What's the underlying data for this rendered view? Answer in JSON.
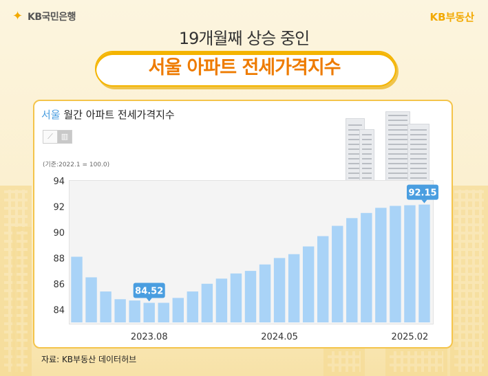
{
  "brand": {
    "bank": "KB국민은행",
    "realestate": "KB부동산"
  },
  "headline": {
    "line1": "19개월째 상승 중인",
    "line2": "서울 아파트 전세가격지수"
  },
  "card": {
    "city": "서울",
    "title_rest": " 월간 아파트 전세가격지수",
    "basis": "(기준:2022.1 = 100.0)"
  },
  "source": "자료: KB부동산 데이터허브",
  "colors": {
    "bar": "#a9d3f7",
    "label_bg": "#4a9ee0",
    "accent": "#f4b400",
    "title_orange": "#ee7b00"
  },
  "icons": {
    "line_toggle": "line-chart-icon",
    "bar_toggle": "bar-chart-icon"
  },
  "chart_data": {
    "type": "bar",
    "title": "",
    "ylim": [
      83,
      94
    ],
    "yticks": [
      84,
      86,
      88,
      90,
      92,
      94
    ],
    "x_tick_labels": [
      "2023.08",
      "2024.05",
      "2025.02"
    ],
    "x_tick_index": [
      5,
      14,
      23
    ],
    "values": [
      88.1,
      86.5,
      85.4,
      84.8,
      84.7,
      84.52,
      84.52,
      84.9,
      85.4,
      86.0,
      86.4,
      86.8,
      87.0,
      87.5,
      88.0,
      88.3,
      88.9,
      89.7,
      90.5,
      91.1,
      91.5,
      91.9,
      92.05,
      92.1,
      92.15
    ],
    "annotations": [
      {
        "index": 5,
        "label": "84.52"
      },
      {
        "index": 24,
        "label": "92.15"
      }
    ]
  }
}
